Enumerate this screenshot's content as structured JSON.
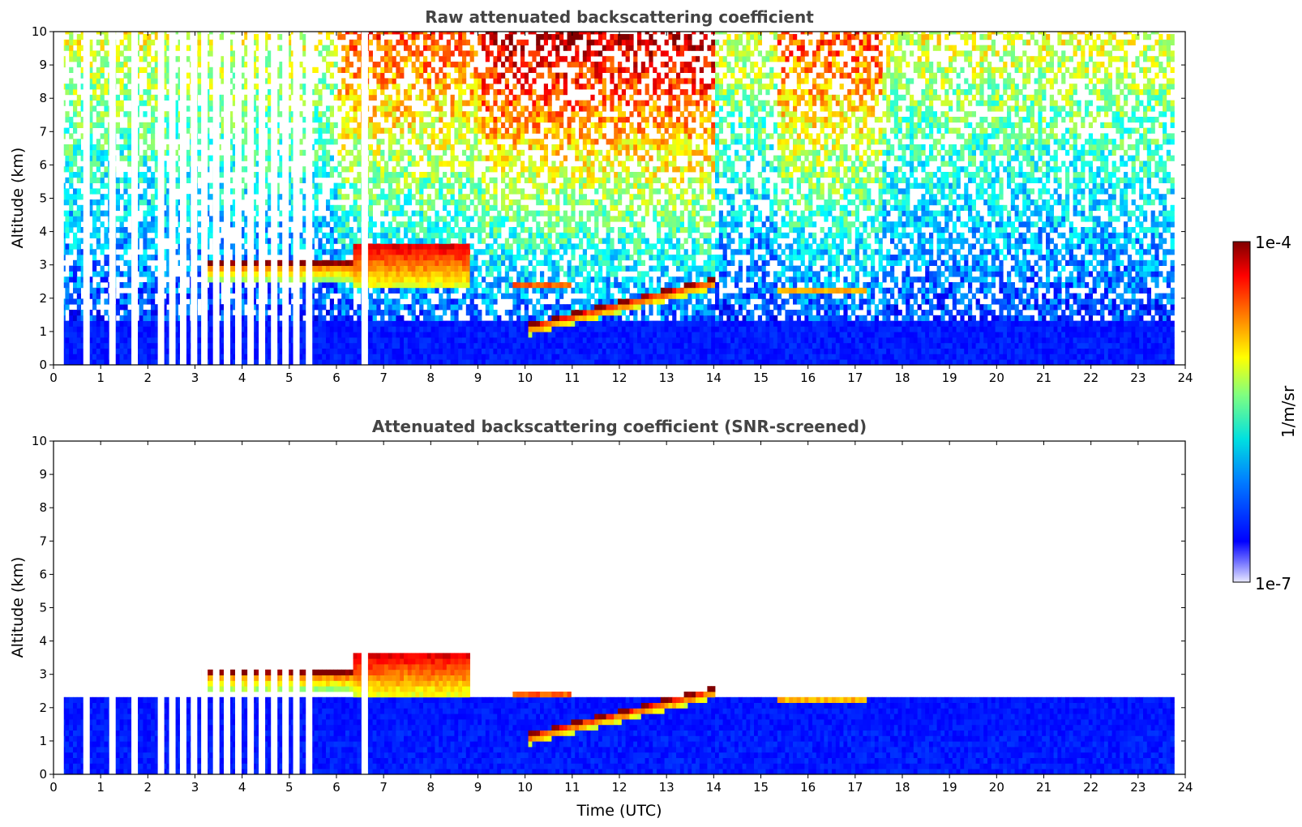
{
  "chart_data": [
    {
      "type": "heatmap",
      "title": "Raw attenuated backscattering coefficient",
      "xlabel": "",
      "ylabel": "Altitude (km)",
      "xlim": [
        0,
        24
      ],
      "ylim": [
        0,
        10
      ],
      "x_ticks": [
        "0",
        "1",
        "2",
        "3",
        "4",
        "5",
        "6",
        "7",
        "8",
        "9",
        "10",
        "11",
        "12",
        "13",
        "14",
        "15",
        "16",
        "17",
        "18",
        "19",
        "20",
        "21",
        "22",
        "23",
        "24"
      ],
      "y_ticks": [
        "0",
        "1",
        "2",
        "3",
        "4",
        "5",
        "6",
        "7",
        "8",
        "9",
        "10"
      ],
      "data_end_time": 23.7,
      "missing_profiles": [
        0.05,
        0.15,
        0.7,
        1.25,
        1.72,
        2.28,
        2.52,
        2.75,
        2.98,
        3.2,
        3.45,
        3.68,
        3.92,
        4.18,
        4.42,
        4.68,
        4.92,
        5.15,
        5.42,
        6.6
      ],
      "background_noise": [
        {
          "t0": 0,
          "t1": 6,
          "top_value": "mid"
        },
        {
          "t0": 6,
          "t1": 9,
          "top_value": "high"
        },
        {
          "t0": 9,
          "t1": 14,
          "top_value": "very-high"
        },
        {
          "t0": 14,
          "t1": 15.3,
          "top_value": "mid"
        },
        {
          "t0": 15.3,
          "t1": 17.5,
          "top_value": "high"
        },
        {
          "t0": 17.5,
          "t1": 23.7,
          "top_value": "mid"
        }
      ],
      "cloud_layers": [
        {
          "t_start": 3.1,
          "t_end": 6.3,
          "top_km": 3.0,
          "base_km": 2.4,
          "intensity": "high"
        },
        {
          "t_start": 6.3,
          "t_end": 8.8,
          "top_km": 3.6,
          "base_km": 2.2,
          "intensity": "very-high"
        },
        {
          "t_start": 9.7,
          "t_end": 10.9,
          "top_km": 2.4,
          "base_km": 2.2,
          "intensity": "very-high"
        },
        {
          "t_start": 10.0,
          "t_end": 14.0,
          "top_km": 2.3,
          "base_km": 0.9,
          "intensity": "very-high"
        },
        {
          "t_start": 15.3,
          "t_end": 17.2,
          "top_km": 2.25,
          "base_km": 2.1,
          "intensity": "very-high"
        }
      ]
    },
    {
      "type": "heatmap",
      "title": "Attenuated backscattering coefficient (SNR-screened)",
      "xlabel": "Time (UTC)",
      "ylabel": "Altitude (km)",
      "xlim": [
        0,
        24
      ],
      "ylim": [
        0,
        10
      ],
      "x_ticks": [
        "0",
        "1",
        "2",
        "3",
        "4",
        "5",
        "6",
        "7",
        "8",
        "9",
        "10",
        "11",
        "12",
        "13",
        "14",
        "15",
        "16",
        "17",
        "18",
        "19",
        "20",
        "21",
        "22",
        "23",
        "24"
      ],
      "y_ticks": [
        "0",
        "1",
        "2",
        "3",
        "4",
        "5",
        "6",
        "7",
        "8",
        "9",
        "10"
      ],
      "data_end_time": 23.7,
      "boundary_layer_top_km": 2.2,
      "cloud_layers": [
        {
          "t_start": 3.1,
          "t_end": 6.3,
          "top_km": 3.0,
          "base_km": 2.4,
          "intensity": "high"
        },
        {
          "t_start": 6.3,
          "t_end": 8.8,
          "top_km": 3.6,
          "base_km": 2.2,
          "intensity": "very-high"
        },
        {
          "t_start": 9.7,
          "t_end": 10.9,
          "top_km": 2.4,
          "base_km": 2.2,
          "intensity": "very-high"
        },
        {
          "t_start": 10.0,
          "t_end": 14.0,
          "top_km": 2.3,
          "base_km": 0.9,
          "intensity": "very-high"
        },
        {
          "t_start": 15.3,
          "t_end": 17.2,
          "top_km": 2.25,
          "base_km": 2.1,
          "intensity": "very-high"
        }
      ]
    }
  ],
  "colorbar": {
    "label": "1/m/sr",
    "max_label": "1e-4",
    "min_label": "1e-7",
    "colormap": "jet",
    "colors": [
      "#d8d8f8",
      "#0000ff",
      "#0080ff",
      "#00e5e5",
      "#80ff80",
      "#ffff00",
      "#ff8000",
      "#ff0000",
      "#800000"
    ]
  }
}
